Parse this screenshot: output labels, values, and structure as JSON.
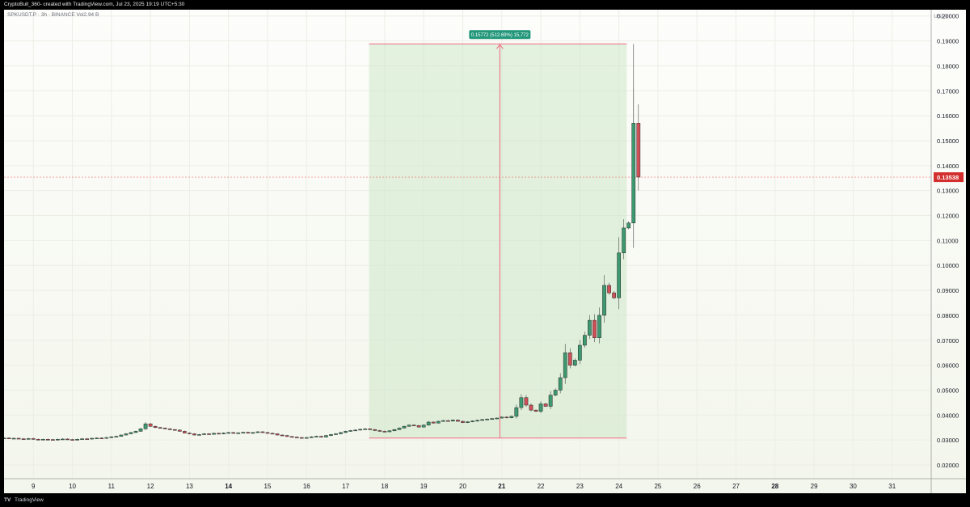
{
  "header": {
    "attribution": "CryptoBull_360- created with TradingView.com, Jul 23, 2025 19:19 UTC+5:30"
  },
  "footer": {
    "logo_glyph": "TV",
    "brand": "TradingView"
  },
  "chart_data": {
    "type": "candlestick",
    "symbol_line": "SPKUSDT.P · 3h · BINANCE  Vol2.94 B",
    "currency": "USDT",
    "ylim": [
      0.0145,
      0.2025
    ],
    "yticks": [
      0.02,
      0.03,
      0.04,
      0.05,
      0.06,
      0.07,
      0.08,
      0.09,
      0.1,
      0.11,
      0.12,
      0.13,
      0.14,
      0.15,
      0.16,
      0.17,
      0.18,
      0.19,
      0.2
    ],
    "ytick_labels": [
      "0.02000",
      "0.03000",
      "0.04000",
      "0.05000",
      "0.06000",
      "0.07000",
      "0.08000",
      "0.09000",
      "0.10000",
      "0.11000",
      "0.12000",
      "0.13000",
      "0.14000",
      "0.15000",
      "0.16000",
      "0.17000",
      "0.18000",
      "0.19000",
      "0.20000"
    ],
    "xlim": [
      8.25,
      32.0
    ],
    "xticks": [
      {
        "day": 9,
        "label": "9",
        "bold": false
      },
      {
        "day": 10,
        "label": "10",
        "bold": false
      },
      {
        "day": 11,
        "label": "11",
        "bold": false
      },
      {
        "day": 12,
        "label": "12",
        "bold": false
      },
      {
        "day": 13,
        "label": "13",
        "bold": false
      },
      {
        "day": 14,
        "label": "14",
        "bold": true
      },
      {
        "day": 15,
        "label": "15",
        "bold": false
      },
      {
        "day": 16,
        "label": "16",
        "bold": false
      },
      {
        "day": 17,
        "label": "17",
        "bold": false
      },
      {
        "day": 18,
        "label": "18",
        "bold": false
      },
      {
        "day": 19,
        "label": "19",
        "bold": false
      },
      {
        "day": 20,
        "label": "20",
        "bold": false
      },
      {
        "day": 21,
        "label": "21",
        "bold": true
      },
      {
        "day": 22,
        "label": "22",
        "bold": false
      },
      {
        "day": 23,
        "label": "23",
        "bold": false
      },
      {
        "day": 24,
        "label": "24",
        "bold": false
      },
      {
        "day": 25,
        "label": "25",
        "bold": false
      },
      {
        "day": 26,
        "label": "26",
        "bold": false
      },
      {
        "day": 27,
        "label": "27",
        "bold": false
      },
      {
        "day": 28,
        "label": "28",
        "bold": true
      },
      {
        "day": 29,
        "label": "29",
        "bold": false
      },
      {
        "day": 30,
        "label": "30",
        "bold": false
      },
      {
        "day": 31,
        "label": "31",
        "bold": false
      }
    ],
    "last_price": 0.13538,
    "last_price_label": "0.13538",
    "measure": {
      "x_start": 17.6,
      "x_end": 24.2,
      "x_arrow": 20.95,
      "price_low": 0.0308,
      "price_high": 0.1888,
      "label": "0.15772 (512.69%) 15,772"
    },
    "candles_step_days": 0.125,
    "candles_start_day": 8.25,
    "closes": [
      0.0308,
      0.0306,
      0.0307,
      0.0305,
      0.0304,
      0.0306,
      0.0303,
      0.0301,
      0.0303,
      0.0302,
      0.0301,
      0.0303,
      0.0304,
      0.0302,
      0.03,
      0.0303,
      0.0305,
      0.0304,
      0.0307,
      0.0308,
      0.0307,
      0.031,
      0.0313,
      0.0315,
      0.032,
      0.0325,
      0.033,
      0.0335,
      0.0345,
      0.0365,
      0.0355,
      0.035,
      0.0348,
      0.0345,
      0.0342,
      0.034,
      0.0335,
      0.0328,
      0.0325,
      0.032,
      0.0322,
      0.0325,
      0.0323,
      0.0327,
      0.0325,
      0.0328,
      0.033,
      0.0327,
      0.0329,
      0.0331,
      0.0328,
      0.033,
      0.0333,
      0.033,
      0.0327,
      0.0325,
      0.032,
      0.0318,
      0.0314,
      0.0312,
      0.031,
      0.0308,
      0.031,
      0.0313,
      0.0315,
      0.0312,
      0.0318,
      0.0322,
      0.0325,
      0.033,
      0.0335,
      0.0338,
      0.034,
      0.0343,
      0.0345,
      0.0342,
      0.0338,
      0.0335,
      0.0333,
      0.0337,
      0.0342,
      0.0348,
      0.0355,
      0.036,
      0.0358,
      0.0352,
      0.036,
      0.0372,
      0.0368,
      0.0375,
      0.0378,
      0.0376,
      0.038,
      0.0375,
      0.037,
      0.0373,
      0.0376,
      0.0379,
      0.0382,
      0.0384,
      0.0386,
      0.0388,
      0.0392,
      0.0389,
      0.0395,
      0.043,
      0.047,
      0.044,
      0.042,
      0.0415,
      0.0445,
      0.0435,
      0.048,
      0.05,
      0.055,
      0.065,
      0.06,
      0.062,
      0.068,
      0.072,
      0.078,
      0.071,
      0.08,
      0.092,
      0.089,
      0.087,
      0.105,
      0.115,
      0.117,
      0.157,
      0.1354
    ],
    "annotation": "price axis labelled 0.02000–0.20000 USDT"
  }
}
